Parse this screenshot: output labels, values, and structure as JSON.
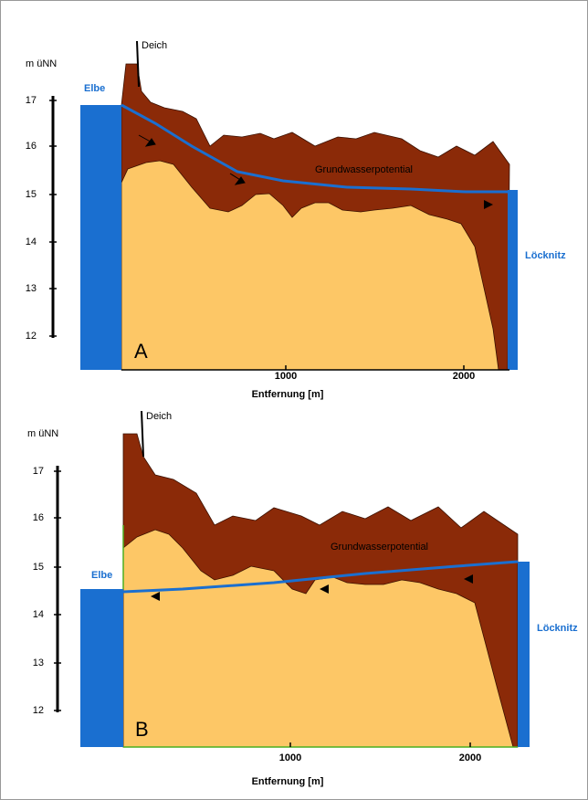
{
  "panels": [
    {
      "y_axis_label": "m üNN",
      "y_ticks": [
        "17",
        "16",
        "15",
        "14",
        "13",
        "12"
      ],
      "x_ticks": [
        "1000",
        "2000"
      ],
      "x_axis_label": "Entfernung [m]",
      "dike": "Deich",
      "left_river": "Elbe",
      "right_river": "Löcknitz",
      "annotation": "Grundwasserpotential",
      "panel_label": "A"
    },
    {
      "y_axis_label": "m üNN",
      "y_ticks": [
        "17",
        "16",
        "15",
        "14",
        "13",
        "12"
      ],
      "x_ticks": [
        "1000",
        "2000"
      ],
      "x_axis_label": "Entfernung [m]",
      "dike": "Deich",
      "left_river": "Elbe",
      "right_river": "Löcknitz",
      "annotation": "Grundwasserpotential",
      "panel_label": "B"
    }
  ]
}
